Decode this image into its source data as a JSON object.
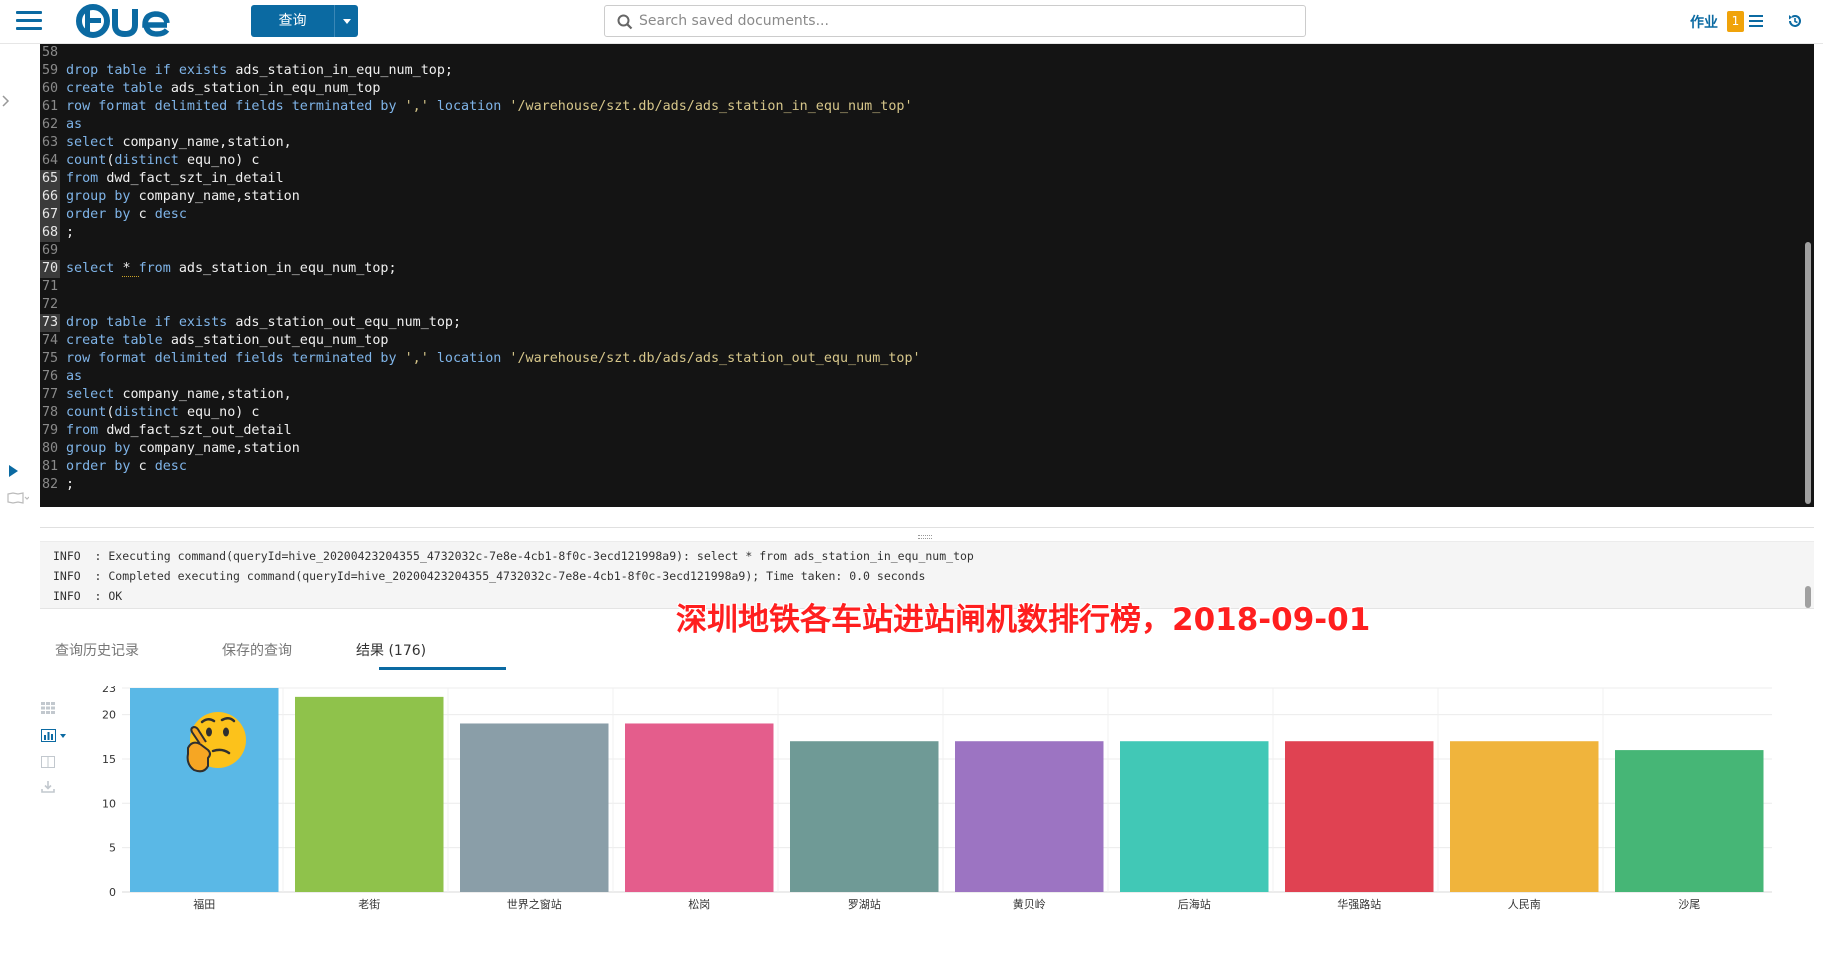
{
  "header": {
    "query_button_label": "查询",
    "search_placeholder": "Search saved documents...",
    "jobs_label": "作业",
    "jobs_count": "1"
  },
  "editor": {
    "lines": [
      {
        "num": "58",
        "active": false,
        "tokens": []
      },
      {
        "num": "59",
        "active": false,
        "tokens": [
          [
            "kw",
            "drop table if exists "
          ],
          [
            "nm",
            "ads_station_in_equ_num_top;"
          ]
        ]
      },
      {
        "num": "60",
        "active": false,
        "tokens": [
          [
            "kw",
            "create table "
          ],
          [
            "nm",
            "ads_station_in_equ_num_top"
          ]
        ]
      },
      {
        "num": "61",
        "active": false,
        "tokens": [
          [
            "kw",
            "row format delimited fields terminated by "
          ],
          [
            "str",
            "','"
          ],
          [
            "kw",
            " location "
          ],
          [
            "str",
            "'/warehouse/szt.db/ads/ads_station_in_equ_num_top'"
          ]
        ]
      },
      {
        "num": "62",
        "active": false,
        "tokens": [
          [
            "kw",
            "as"
          ]
        ]
      },
      {
        "num": "63",
        "active": false,
        "tokens": [
          [
            "kw",
            "select "
          ],
          [
            "nm",
            "company_name,station,"
          ]
        ]
      },
      {
        "num": "64",
        "active": false,
        "tokens": [
          [
            "kw",
            "count"
          ],
          [
            "nm",
            "("
          ],
          [
            "kw",
            "distinct "
          ],
          [
            "nm",
            "equ_no) c"
          ]
        ]
      },
      {
        "num": "65",
        "active": true,
        "tokens": [
          [
            "kw",
            "from "
          ],
          [
            "nm",
            "dwd_fact_szt_in_detail"
          ]
        ]
      },
      {
        "num": "66",
        "active": true,
        "tokens": [
          [
            "kw",
            "group by "
          ],
          [
            "nm",
            "company_name,station"
          ]
        ]
      },
      {
        "num": "67",
        "active": true,
        "tokens": [
          [
            "kw",
            "order by "
          ],
          [
            "nm",
            "c "
          ],
          [
            "kw",
            "desc"
          ]
        ]
      },
      {
        "num": "68",
        "active": true,
        "tokens": [
          [
            "nm",
            ";"
          ]
        ]
      },
      {
        "num": "69",
        "active": false,
        "tokens": []
      },
      {
        "num": "70",
        "active": true,
        "tokens": [
          [
            "kw",
            "select "
          ],
          [
            "nm",
            "* "
          ],
          [
            "kw",
            "from "
          ],
          [
            "nm",
            "ads_station_in_equ_num_top;"
          ]
        ]
      },
      {
        "num": "71",
        "active": false,
        "tokens": []
      },
      {
        "num": "72",
        "active": false,
        "tokens": []
      },
      {
        "num": "73",
        "active": true,
        "tokens": [
          [
            "kw",
            "drop table if exists "
          ],
          [
            "nm",
            "ads_station_out_equ_num_top;"
          ]
        ]
      },
      {
        "num": "74",
        "active": false,
        "tokens": [
          [
            "kw",
            "create table "
          ],
          [
            "nm",
            "ads_station_out_equ_num_top"
          ]
        ]
      },
      {
        "num": "75",
        "active": false,
        "tokens": [
          [
            "kw",
            "row format delimited fields terminated by "
          ],
          [
            "str",
            "','"
          ],
          [
            "kw",
            " location "
          ],
          [
            "str",
            "'/warehouse/szt.db/ads/ads_station_out_equ_num_top'"
          ]
        ]
      },
      {
        "num": "76",
        "active": false,
        "tokens": [
          [
            "kw",
            "as"
          ]
        ]
      },
      {
        "num": "77",
        "active": false,
        "tokens": [
          [
            "kw",
            "select "
          ],
          [
            "nm",
            "company_name,station,"
          ]
        ]
      },
      {
        "num": "78",
        "active": false,
        "tokens": [
          [
            "kw",
            "count"
          ],
          [
            "nm",
            "("
          ],
          [
            "kw",
            "distinct "
          ],
          [
            "nm",
            "equ_no) c"
          ]
        ]
      },
      {
        "num": "79",
        "active": false,
        "tokens": [
          [
            "kw",
            "from "
          ],
          [
            "nm",
            "dwd_fact_szt_out_detail"
          ]
        ]
      },
      {
        "num": "80",
        "active": false,
        "tokens": [
          [
            "kw",
            "group by "
          ],
          [
            "nm",
            "company_name,station"
          ]
        ]
      },
      {
        "num": "81",
        "active": false,
        "tokens": [
          [
            "kw",
            "order by "
          ],
          [
            "nm",
            "c "
          ],
          [
            "kw",
            "desc"
          ]
        ]
      },
      {
        "num": "82",
        "active": false,
        "tokens": [
          [
            "nm",
            ";"
          ]
        ]
      }
    ]
  },
  "log": {
    "lines": [
      "INFO  : Executing command(queryId=hive_20200423204355_4732032c-7e8e-4cb1-8f0c-3ecd121998a9): select * from ads_station_in_equ_num_top",
      "INFO  : Completed executing command(queryId=hive_20200423204355_4732032c-7e8e-4cb1-8f0c-3ecd121998a9); Time taken: 0.0 seconds",
      "INFO  : OK"
    ]
  },
  "caption": "深圳地铁各车站进站闸机数排行榜，2018-09-01",
  "tabs": {
    "history": "查询历史记录",
    "saved": "保存的查询",
    "results": "结果 (176)"
  },
  "chart_data": {
    "type": "bar",
    "categories": [
      "福田",
      "老街",
      "世界之窗站",
      "松岗",
      "罗湖站",
      "黄贝岭",
      "后海站",
      "华强路站",
      "人民南",
      "沙尾"
    ],
    "values": [
      23,
      22,
      19,
      19,
      17,
      17,
      17,
      17,
      17,
      16
    ],
    "colors": [
      "#5ab8e6",
      "#8fc24b",
      "#8a9ea8",
      "#e45d8c",
      "#6f9a96",
      "#9c74c2",
      "#41c8b6",
      "#e04252",
      "#f0b43c",
      "#46b676"
    ],
    "yticks": [
      "0",
      "5",
      "10",
      "15",
      "20",
      "23"
    ],
    "ylim": [
      0,
      23
    ],
    "grid": true
  }
}
